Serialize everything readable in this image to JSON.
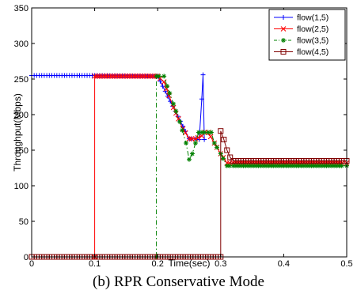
{
  "caption": "(b) RPR Conservative Mode",
  "chart_data": {
    "type": "line",
    "title": "",
    "xlabel": "Time(sec)",
    "ylabel": "Throughput(Mbps)",
    "xlim": [
      0,
      0.5
    ],
    "ylim": [
      0,
      350
    ],
    "xticks": [
      0,
      0.1,
      0.2,
      0.3,
      0.4,
      0.5
    ],
    "xtick_labels": [
      "0",
      "0.1",
      "0.2",
      "0.3",
      "0.4",
      "0.5"
    ],
    "yticks": [
      0,
      50,
      100,
      150,
      200,
      250,
      300,
      350
    ],
    "ytick_labels": [
      "0",
      "50",
      "100",
      "150",
      "200",
      "250",
      "300",
      "350"
    ],
    "grid": false,
    "legend_position": "top-right",
    "series": [
      {
        "name": "flow(1,5)",
        "color": "#0000ff",
        "marker": "plus",
        "dash": "solid",
        "points": [
          [
            0,
            255
          ],
          [
            0.1,
            255
          ],
          [
            0.2,
            254
          ],
          [
            0.25,
            166
          ],
          [
            0.26,
            166
          ],
          [
            0.266,
            165
          ],
          [
            0.27,
            222
          ],
          [
            0.272,
            256
          ],
          [
            0.274,
            165
          ]
        ]
      },
      {
        "name": "flow(2,5)",
        "color": "#ff0000",
        "marker": "x",
        "dash": "solid",
        "points": [
          [
            0.1,
            0
          ],
          [
            0.1,
            254
          ],
          [
            0.2,
            254
          ],
          [
            0.21,
            246
          ],
          [
            0.225,
            210
          ],
          [
            0.24,
            180
          ],
          [
            0.25,
            166
          ],
          [
            0.26,
            166
          ],
          [
            0.27,
            170
          ],
          [
            0.275,
            175
          ],
          [
            0.28,
            175
          ],
          [
            0.29,
            160
          ],
          [
            0.3,
            145
          ],
          [
            0.31,
            132
          ],
          [
            0.32,
            132
          ],
          [
            0.4,
            132
          ],
          [
            0.5,
            132
          ]
        ]
      },
      {
        "name": "flow(3,5)",
        "color": "#008000",
        "marker": "star",
        "dash": "dashdot",
        "points": [
          [
            0.198,
            0
          ],
          [
            0.198,
            254
          ],
          [
            0.21,
            254
          ],
          [
            0.215,
            240
          ],
          [
            0.225,
            215
          ],
          [
            0.235,
            190
          ],
          [
            0.245,
            160
          ],
          [
            0.25,
            137
          ],
          [
            0.255,
            145
          ],
          [
            0.26,
            160
          ],
          [
            0.265,
            175
          ],
          [
            0.27,
            175
          ],
          [
            0.28,
            175
          ],
          [
            0.285,
            175
          ],
          [
            0.29,
            160
          ],
          [
            0.3,
            145
          ],
          [
            0.31,
            128
          ],
          [
            0.32,
            128
          ],
          [
            0.4,
            128
          ],
          [
            0.5,
            128
          ]
        ]
      },
      {
        "name": "flow(4,5)",
        "color": "#800000",
        "marker": "square",
        "dash": "solid",
        "points": [
          [
            0,
            0
          ],
          [
            0.3,
            0
          ],
          [
            0.3,
            177
          ],
          [
            0.305,
            165
          ],
          [
            0.31,
            150
          ],
          [
            0.315,
            140
          ],
          [
            0.32,
            135
          ],
          [
            0.4,
            135
          ],
          [
            0.5,
            135
          ]
        ]
      }
    ]
  }
}
